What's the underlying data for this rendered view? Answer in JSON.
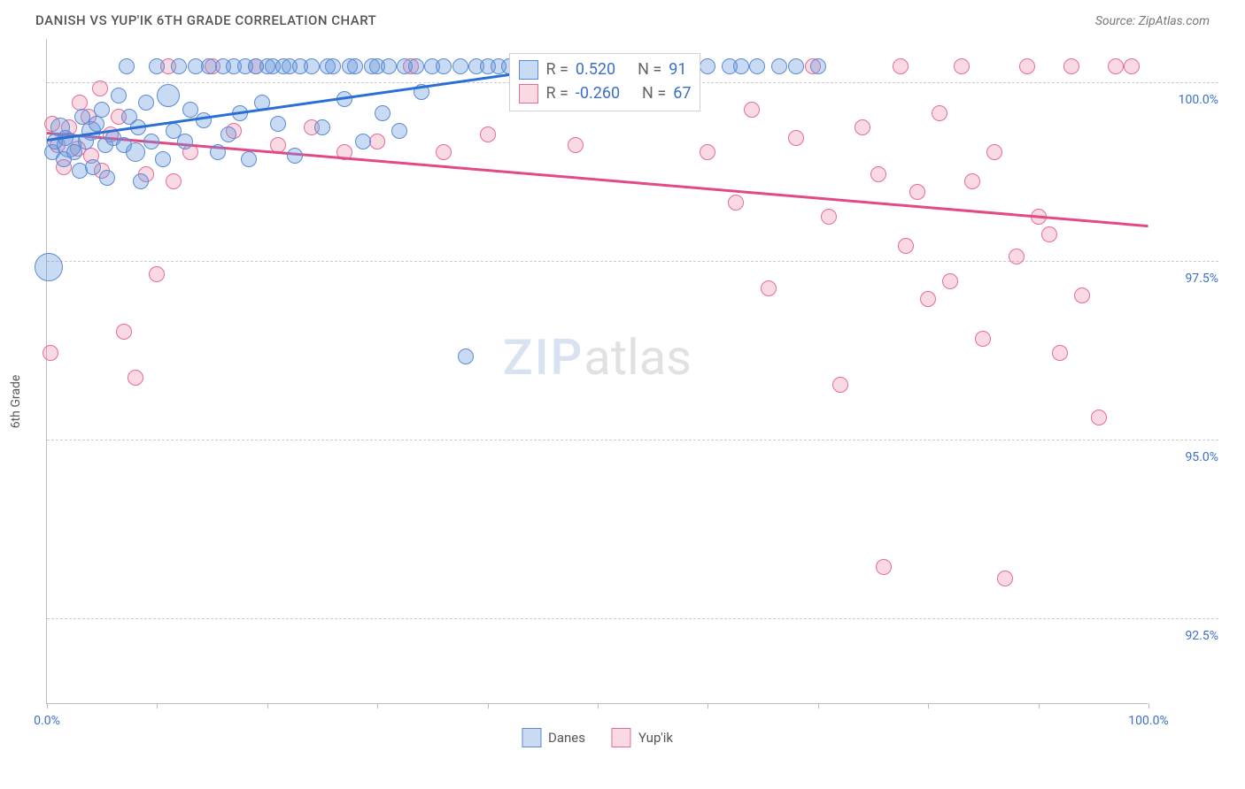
{
  "header": {
    "title": "DANISH VS YUP'IK 6TH GRADE CORRELATION CHART",
    "source": "Source: ZipAtlas.com"
  },
  "axes": {
    "ylabel": "6th Grade",
    "xlim": [
      0,
      100
    ],
    "ylim": [
      91.3,
      100.6
    ],
    "yticks": [
      {
        "v": 100.0,
        "label": "100.0%"
      },
      {
        "v": 97.5,
        "label": "97.5%"
      },
      {
        "v": 95.0,
        "label": "95.0%"
      },
      {
        "v": 92.5,
        "label": "92.5%"
      }
    ],
    "xticks_major": [
      0,
      10,
      20,
      30,
      40,
      50,
      60,
      70,
      80,
      90,
      100
    ],
    "xlabels": [
      {
        "v": 0,
        "label": "0.0%"
      },
      {
        "v": 100,
        "label": "100.0%"
      }
    ],
    "ytick_color": "#3b6fc9",
    "grid_color": "#cccccc",
    "axis_color": "#bbbbbb"
  },
  "series": {
    "danes": {
      "label": "Danes",
      "fill": "rgba(100,150,220,0.35)",
      "stroke": "#5a8bd6",
      "trend_color": "#2a6fd6",
      "trend": {
        "x1": 0,
        "y1": 99.2,
        "x2": 55,
        "y2": 100.4
      },
      "stats": {
        "R": "0.520",
        "N": "91"
      },
      "points": [
        {
          "x": 0.2,
          "y": 97.4,
          "r": 16
        },
        {
          "x": 0.5,
          "y": 99.0,
          "r": 9
        },
        {
          "x": 0.7,
          "y": 99.15,
          "r": 9
        },
        {
          "x": 1.2,
          "y": 99.35,
          "r": 11
        },
        {
          "x": 1.5,
          "y": 98.9,
          "r": 9
        },
        {
          "x": 1.7,
          "y": 99.2,
          "r": 9
        },
        {
          "x": 2.0,
          "y": 99.1,
          "r": 14
        },
        {
          "x": 2.5,
          "y": 99.0,
          "r": 9
        },
        {
          "x": 3.0,
          "y": 98.75,
          "r": 9
        },
        {
          "x": 3.2,
          "y": 99.5,
          "r": 9
        },
        {
          "x": 3.5,
          "y": 99.15,
          "r": 9
        },
        {
          "x": 4.0,
          "y": 99.3,
          "r": 11
        },
        {
          "x": 4.2,
          "y": 98.8,
          "r": 9
        },
        {
          "x": 4.5,
          "y": 99.4,
          "r": 9
        },
        {
          "x": 5.0,
          "y": 99.6,
          "r": 9
        },
        {
          "x": 5.3,
          "y": 99.1,
          "r": 9
        },
        {
          "x": 5.5,
          "y": 98.65,
          "r": 9
        },
        {
          "x": 6.0,
          "y": 99.2,
          "r": 9
        },
        {
          "x": 6.5,
          "y": 99.8,
          "r": 9
        },
        {
          "x": 7.0,
          "y": 99.1,
          "r": 9
        },
        {
          "x": 7.2,
          "y": 100.2,
          "r": 9
        },
        {
          "x": 7.5,
          "y": 99.5,
          "r": 9
        },
        {
          "x": 8.0,
          "y": 99.0,
          "r": 11
        },
        {
          "x": 8.3,
          "y": 99.35,
          "r": 9
        },
        {
          "x": 8.5,
          "y": 98.6,
          "r": 9
        },
        {
          "x": 9.0,
          "y": 99.7,
          "r": 9
        },
        {
          "x": 9.5,
          "y": 99.15,
          "r": 9
        },
        {
          "x": 10.0,
          "y": 100.2,
          "r": 9
        },
        {
          "x": 10.5,
          "y": 98.9,
          "r": 9
        },
        {
          "x": 11.0,
          "y": 99.8,
          "r": 13
        },
        {
          "x": 11.5,
          "y": 99.3,
          "r": 9
        },
        {
          "x": 12.0,
          "y": 100.2,
          "r": 9
        },
        {
          "x": 12.5,
          "y": 99.15,
          "r": 9
        },
        {
          "x": 13.0,
          "y": 99.6,
          "r": 9
        },
        {
          "x": 13.5,
          "y": 100.2,
          "r": 9
        },
        {
          "x": 14.2,
          "y": 99.45,
          "r": 9
        },
        {
          "x": 14.7,
          "y": 100.2,
          "r": 9
        },
        {
          "x": 15.5,
          "y": 99.0,
          "r": 9
        },
        {
          "x": 16.0,
          "y": 100.2,
          "r": 9
        },
        {
          "x": 16.5,
          "y": 99.25,
          "r": 9
        },
        {
          "x": 17.0,
          "y": 100.2,
          "r": 9
        },
        {
          "x": 17.5,
          "y": 99.55,
          "r": 9
        },
        {
          "x": 18.0,
          "y": 100.2,
          "r": 9
        },
        {
          "x": 18.3,
          "y": 98.9,
          "r": 9
        },
        {
          "x": 19.0,
          "y": 100.2,
          "r": 9
        },
        {
          "x": 19.5,
          "y": 99.7,
          "r": 9
        },
        {
          "x": 20.0,
          "y": 100.2,
          "r": 9
        },
        {
          "x": 20.5,
          "y": 100.2,
          "r": 9
        },
        {
          "x": 21.0,
          "y": 99.4,
          "r": 9
        },
        {
          "x": 21.5,
          "y": 100.2,
          "r": 9
        },
        {
          "x": 22.0,
          "y": 100.2,
          "r": 9
        },
        {
          "x": 22.5,
          "y": 98.95,
          "r": 9
        },
        {
          "x": 23.0,
          "y": 100.2,
          "r": 9
        },
        {
          "x": 24.0,
          "y": 100.2,
          "r": 9
        },
        {
          "x": 25.0,
          "y": 99.35,
          "r": 9
        },
        {
          "x": 25.5,
          "y": 100.2,
          "r": 9
        },
        {
          "x": 26.0,
          "y": 100.2,
          "r": 9
        },
        {
          "x": 27.0,
          "y": 99.75,
          "r": 9
        },
        {
          "x": 27.5,
          "y": 100.2,
          "r": 9
        },
        {
          "x": 28.0,
          "y": 100.2,
          "r": 9
        },
        {
          "x": 28.7,
          "y": 99.15,
          "r": 9
        },
        {
          "x": 29.5,
          "y": 100.2,
          "r": 9
        },
        {
          "x": 30.0,
          "y": 100.2,
          "r": 9
        },
        {
          "x": 30.5,
          "y": 99.55,
          "r": 9
        },
        {
          "x": 31.0,
          "y": 100.2,
          "r": 9
        },
        {
          "x": 32.0,
          "y": 99.3,
          "r": 9
        },
        {
          "x": 32.5,
          "y": 100.2,
          "r": 9
        },
        {
          "x": 33.5,
          "y": 100.2,
          "r": 9
        },
        {
          "x": 34.0,
          "y": 99.85,
          "r": 9
        },
        {
          "x": 35.0,
          "y": 100.2,
          "r": 9
        },
        {
          "x": 36.0,
          "y": 100.2,
          "r": 9
        },
        {
          "x": 37.5,
          "y": 100.2,
          "r": 9
        },
        {
          "x": 38.0,
          "y": 96.15,
          "r": 9
        },
        {
          "x": 39.0,
          "y": 100.2,
          "r": 9
        },
        {
          "x": 40.0,
          "y": 100.2,
          "r": 9
        },
        {
          "x": 41.0,
          "y": 100.2,
          "r": 9
        },
        {
          "x": 42.0,
          "y": 100.2,
          "r": 9
        },
        {
          "x": 43.5,
          "y": 100.2,
          "r": 9
        },
        {
          "x": 47.0,
          "y": 100.2,
          "r": 9
        },
        {
          "x": 49.0,
          "y": 100.2,
          "r": 9
        },
        {
          "x": 51.0,
          "y": 100.2,
          "r": 9
        },
        {
          "x": 53.0,
          "y": 100.2,
          "r": 9
        },
        {
          "x": 56.0,
          "y": 100.2,
          "r": 9
        },
        {
          "x": 58.0,
          "y": 100.2,
          "r": 9
        },
        {
          "x": 60.0,
          "y": 100.2,
          "r": 9
        },
        {
          "x": 62.0,
          "y": 100.2,
          "r": 9
        },
        {
          "x": 63.0,
          "y": 100.2,
          "r": 9
        },
        {
          "x": 64.5,
          "y": 100.2,
          "r": 9
        },
        {
          "x": 66.5,
          "y": 100.2,
          "r": 9
        },
        {
          "x": 68.0,
          "y": 100.2,
          "r": 9
        },
        {
          "x": 70.0,
          "y": 100.2,
          "r": 9
        }
      ]
    },
    "yupik": {
      "label": "Yup'ik",
      "fill": "rgba(235,130,160,0.30)",
      "stroke": "#e76b9a",
      "trend_color": "#e24a86",
      "trend": {
        "x1": 0,
        "y1": 99.3,
        "x2": 100,
        "y2": 98.0
      },
      "stats": {
        "R": "-0.260",
        "N": "67"
      },
      "points": [
        {
          "x": 0.3,
          "y": 96.2,
          "r": 9
        },
        {
          "x": 0.5,
          "y": 99.4,
          "r": 9
        },
        {
          "x": 1.0,
          "y": 99.1,
          "r": 9
        },
        {
          "x": 1.5,
          "y": 98.8,
          "r": 9
        },
        {
          "x": 2.0,
          "y": 99.35,
          "r": 9
        },
        {
          "x": 2.8,
          "y": 99.05,
          "r": 9
        },
        {
          "x": 3.0,
          "y": 99.7,
          "r": 9
        },
        {
          "x": 3.8,
          "y": 99.5,
          "r": 9
        },
        {
          "x": 4.0,
          "y": 98.95,
          "r": 9
        },
        {
          "x": 4.8,
          "y": 99.9,
          "r": 9
        },
        {
          "x": 5.0,
          "y": 98.75,
          "r": 9
        },
        {
          "x": 5.8,
          "y": 99.25,
          "r": 9
        },
        {
          "x": 6.5,
          "y": 99.5,
          "r": 9
        },
        {
          "x": 7.0,
          "y": 96.5,
          "r": 9
        },
        {
          "x": 8.0,
          "y": 95.85,
          "r": 9
        },
        {
          "x": 9.0,
          "y": 98.7,
          "r": 9
        },
        {
          "x": 10.0,
          "y": 97.3,
          "r": 9
        },
        {
          "x": 11.0,
          "y": 100.2,
          "r": 9
        },
        {
          "x": 11.5,
          "y": 98.6,
          "r": 9
        },
        {
          "x": 13.0,
          "y": 99.0,
          "r": 9
        },
        {
          "x": 15.0,
          "y": 100.2,
          "r": 9
        },
        {
          "x": 17.0,
          "y": 99.3,
          "r": 9
        },
        {
          "x": 19.0,
          "y": 100.2,
          "r": 9
        },
        {
          "x": 21.0,
          "y": 99.1,
          "r": 9
        },
        {
          "x": 24.0,
          "y": 99.35,
          "r": 9
        },
        {
          "x": 27.0,
          "y": 99.0,
          "r": 9
        },
        {
          "x": 30.0,
          "y": 99.15,
          "r": 9
        },
        {
          "x": 33.0,
          "y": 100.2,
          "r": 9
        },
        {
          "x": 36.0,
          "y": 99.0,
          "r": 9
        },
        {
          "x": 40.0,
          "y": 99.25,
          "r": 9
        },
        {
          "x": 44.0,
          "y": 100.2,
          "r": 9
        },
        {
          "x": 48.0,
          "y": 99.1,
          "r": 9
        },
        {
          "x": 52.0,
          "y": 100.2,
          "r": 9
        },
        {
          "x": 55.0,
          "y": 99.7,
          "r": 9
        },
        {
          "x": 58.0,
          "y": 99.9,
          "r": 9
        },
        {
          "x": 60.0,
          "y": 99.0,
          "r": 9
        },
        {
          "x": 62.5,
          "y": 98.3,
          "r": 9
        },
        {
          "x": 64.0,
          "y": 99.6,
          "r": 9
        },
        {
          "x": 65.5,
          "y": 97.1,
          "r": 9
        },
        {
          "x": 68.0,
          "y": 99.2,
          "r": 9
        },
        {
          "x": 69.5,
          "y": 100.2,
          "r": 9
        },
        {
          "x": 71.0,
          "y": 98.1,
          "r": 9
        },
        {
          "x": 72.0,
          "y": 95.75,
          "r": 9
        },
        {
          "x": 74.0,
          "y": 99.35,
          "r": 9
        },
        {
          "x": 75.5,
          "y": 98.7,
          "r": 9
        },
        {
          "x": 76.0,
          "y": 93.2,
          "r": 9
        },
        {
          "x": 77.5,
          "y": 100.2,
          "r": 9
        },
        {
          "x": 78.0,
          "y": 97.7,
          "r": 9
        },
        {
          "x": 79.0,
          "y": 98.45,
          "r": 9
        },
        {
          "x": 80.0,
          "y": 96.95,
          "r": 9
        },
        {
          "x": 81.0,
          "y": 99.55,
          "r": 9
        },
        {
          "x": 82.0,
          "y": 97.2,
          "r": 9
        },
        {
          "x": 83.0,
          "y": 100.2,
          "r": 9
        },
        {
          "x": 84.0,
          "y": 98.6,
          "r": 9
        },
        {
          "x": 85.0,
          "y": 96.4,
          "r": 9
        },
        {
          "x": 86.0,
          "y": 99.0,
          "r": 9
        },
        {
          "x": 87.0,
          "y": 93.05,
          "r": 9
        },
        {
          "x": 88.0,
          "y": 97.55,
          "r": 9
        },
        {
          "x": 89.0,
          "y": 100.2,
          "r": 9
        },
        {
          "x": 90.0,
          "y": 98.1,
          "r": 9
        },
        {
          "x": 91.0,
          "y": 97.85,
          "r": 9
        },
        {
          "x": 92.0,
          "y": 96.2,
          "r": 9
        },
        {
          "x": 93.0,
          "y": 100.2,
          "r": 9
        },
        {
          "x": 94.0,
          "y": 97.0,
          "r": 9
        },
        {
          "x": 95.5,
          "y": 95.3,
          "r": 9
        },
        {
          "x": 97.0,
          "y": 100.2,
          "r": 9
        },
        {
          "x": 98.5,
          "y": 100.2,
          "r": 9
        }
      ]
    }
  },
  "stats_box": {
    "r_label": "R =",
    "n_label": "N ="
  },
  "watermark": {
    "part1": "ZIP",
    "part2": "atlas"
  },
  "legend_pos": "bottom"
}
